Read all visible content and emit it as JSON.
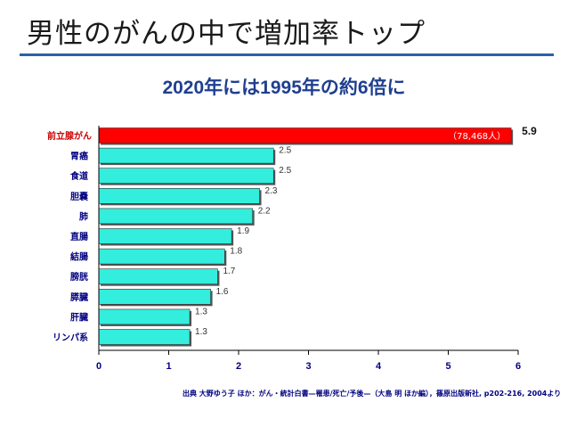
{
  "slide": {
    "title": "男性のがんの中で増加率トップ",
    "subtitle": "2020年には1995年の約6倍に",
    "source": "出典  大野ゆう子 ほか：がん・統計白書—罹患/死亡/予後—（大島 明 ほか編），篠原出版新社, p202-216, 2004より"
  },
  "chart_data": {
    "type": "bar",
    "orientation": "horizontal",
    "categories": [
      "前立腺がん",
      "胃癌",
      "食道",
      "胆嚢",
      "肺",
      "直腸",
      "結腸",
      "膀胱",
      "膵臓",
      "肝臓",
      "リンパ系"
    ],
    "values": [
      5.9,
      2.5,
      2.5,
      2.3,
      2.2,
      1.9,
      1.8,
      1.7,
      1.6,
      1.3,
      1.3
    ],
    "value_labels": [
      "5.9",
      "2.5",
      "2.5",
      "2.3",
      "2.2",
      "1.9",
      "1.8",
      "1.7",
      "1.6",
      "1.3",
      "1.3"
    ],
    "highlight_annotation": "（78,468人）",
    "xlim": [
      0,
      6
    ],
    "xticks": [
      "0",
      "1",
      "2",
      "3",
      "4",
      "5",
      "6"
    ],
    "grid": false,
    "colors": {
      "highlight": "#ff0000",
      "bar": "#33eedd",
      "highlight_label": "#cc0000",
      "category_label": "#000080",
      "value_label": "#333333",
      "title": "#1a1a1a",
      "subtitle": "#1f3f8f",
      "rule": "#2b61a8"
    }
  }
}
